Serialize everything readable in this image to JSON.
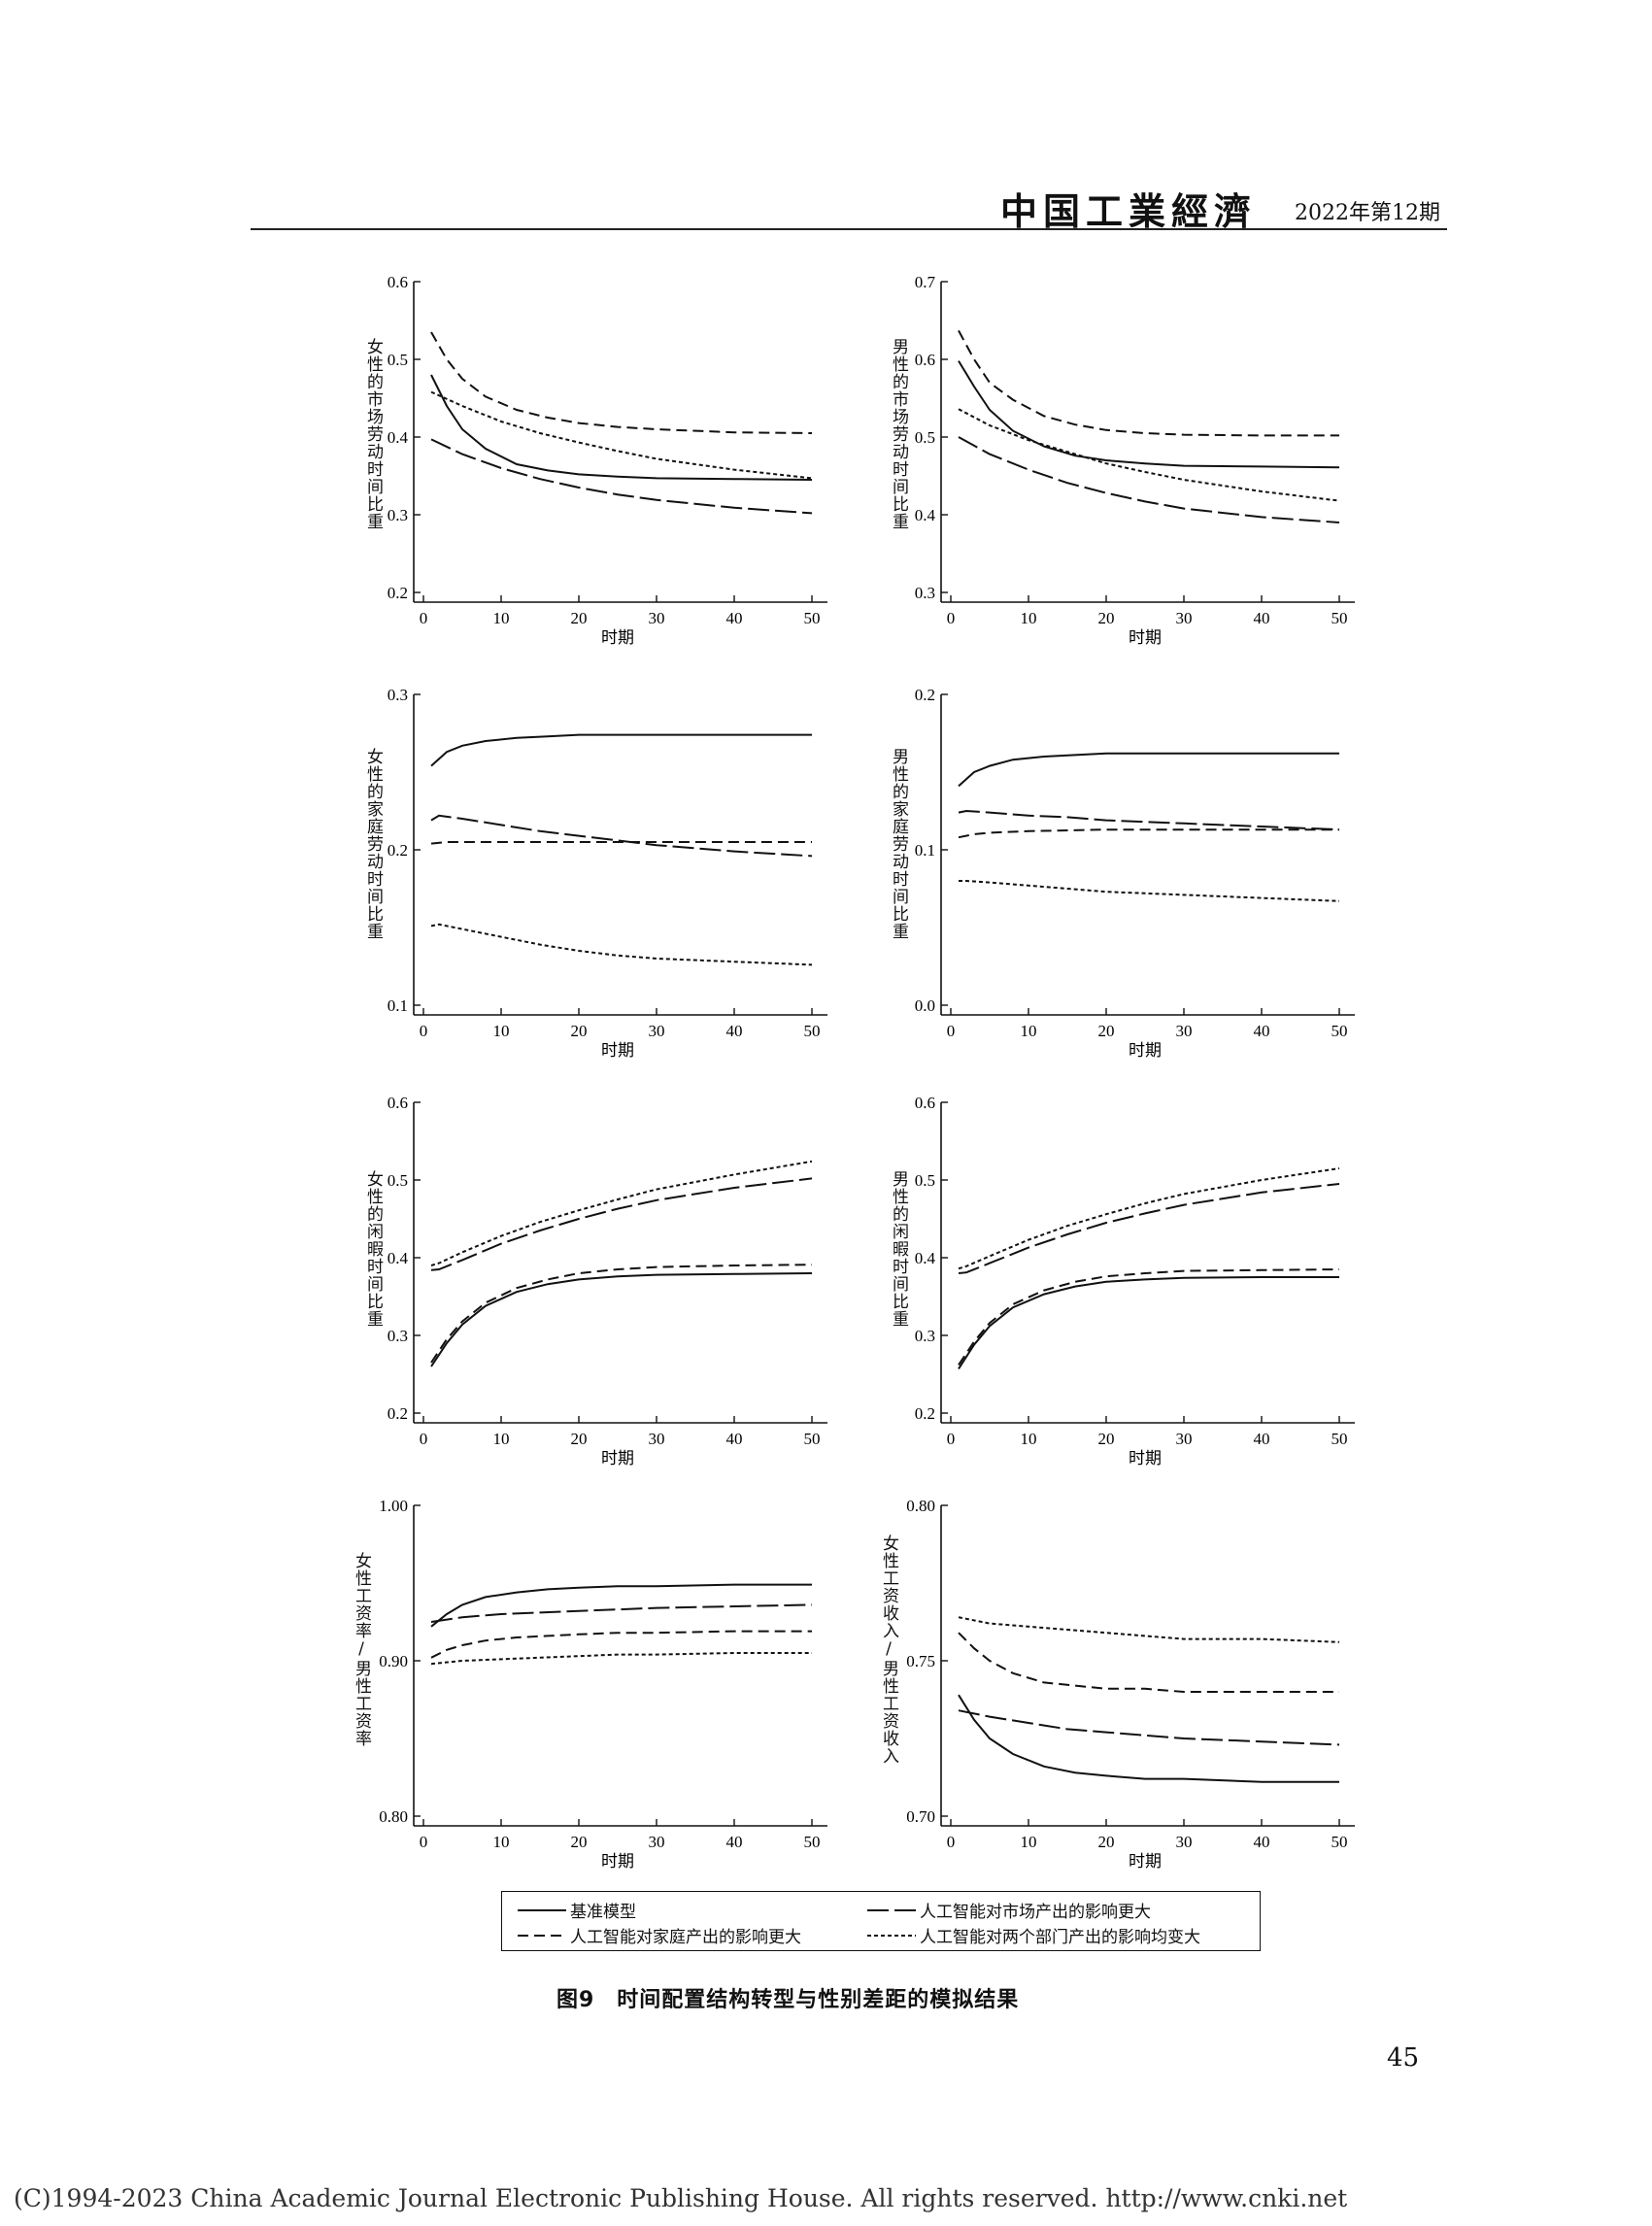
{
  "header": {
    "journal": "中国工業經濟",
    "issue": "2022年第12期"
  },
  "x_label": "时期",
  "figure": {
    "caption": "图9　时间配置结构转型与性别差距的模拟结果"
  },
  "page_number": "45",
  "copyright": "(C)1994-2023 China Academic Journal Electronic Publishing House. All rights reserved.     http://www.cnki.net",
  "legend": [
    {
      "label": "基准模型",
      "style": "solid"
    },
    {
      "label": "人工智能对市场产出的影响更大",
      "style": "longdash"
    },
    {
      "label": "人工智能对家庭产出的影响更大",
      "style": "dash"
    },
    {
      "label": "人工智能对两个部门产出的影响均变大",
      "style": "shortdash"
    }
  ],
  "chart_data": [
    {
      "type": "line",
      "ylabel": "女性的市场劳动时间比重",
      "xlim": [
        0,
        50
      ],
      "ylim": [
        0.2,
        0.6
      ],
      "yticks": [
        "0.2",
        "0.3",
        "0.4",
        "0.5",
        "0.6"
      ],
      "xticks": [
        "0",
        "10",
        "20",
        "30",
        "40",
        "50"
      ],
      "series": [
        {
          "style": "solid",
          "x": [
            1,
            3,
            5,
            8,
            12,
            16,
            20,
            25,
            30,
            40,
            50
          ],
          "y": [
            0.48,
            0.44,
            0.41,
            0.385,
            0.365,
            0.357,
            0.352,
            0.349,
            0.347,
            0.346,
            0.345
          ]
        },
        {
          "style": "longdash",
          "x": [
            1,
            5,
            10,
            15,
            20,
            25,
            30,
            40,
            50
          ],
          "y": [
            0.397,
            0.378,
            0.36,
            0.346,
            0.335,
            0.326,
            0.319,
            0.309,
            0.302
          ]
        },
        {
          "style": "dash",
          "x": [
            1,
            3,
            5,
            8,
            12,
            16,
            20,
            25,
            30,
            40,
            50
          ],
          "y": [
            0.535,
            0.5,
            0.475,
            0.452,
            0.435,
            0.425,
            0.418,
            0.413,
            0.41,
            0.406,
            0.405
          ]
        },
        {
          "style": "shortdash",
          "x": [
            1,
            5,
            10,
            15,
            20,
            25,
            30,
            40,
            50
          ],
          "y": [
            0.458,
            0.44,
            0.42,
            0.405,
            0.393,
            0.382,
            0.372,
            0.358,
            0.347
          ]
        }
      ]
    },
    {
      "type": "line",
      "ylabel": "男性的市场劳动时间比重",
      "xlim": [
        0,
        50
      ],
      "ylim": [
        0.3,
        0.7
      ],
      "yticks": [
        "0.3",
        "0.4",
        "0.5",
        "0.6",
        "0.7"
      ],
      "xticks": [
        "0",
        "10",
        "20",
        "30",
        "40",
        "50"
      ],
      "series": [
        {
          "style": "solid",
          "x": [
            1,
            3,
            5,
            8,
            12,
            16,
            20,
            25,
            30,
            40,
            50
          ],
          "y": [
            0.598,
            0.565,
            0.535,
            0.508,
            0.488,
            0.476,
            0.47,
            0.466,
            0.463,
            0.462,
            0.461
          ]
        },
        {
          "style": "longdash",
          "x": [
            1,
            5,
            10,
            15,
            20,
            25,
            30,
            40,
            50
          ],
          "y": [
            0.5,
            0.478,
            0.458,
            0.441,
            0.428,
            0.417,
            0.408,
            0.397,
            0.39
          ]
        },
        {
          "style": "dash",
          "x": [
            1,
            3,
            5,
            8,
            12,
            16,
            20,
            25,
            30,
            40,
            50
          ],
          "y": [
            0.637,
            0.6,
            0.57,
            0.548,
            0.527,
            0.516,
            0.509,
            0.505,
            0.503,
            0.502,
            0.502
          ]
        },
        {
          "style": "shortdash",
          "x": [
            1,
            5,
            10,
            15,
            20,
            25,
            30,
            40,
            50
          ],
          "y": [
            0.536,
            0.515,
            0.496,
            0.481,
            0.466,
            0.455,
            0.445,
            0.43,
            0.418
          ]
        }
      ]
    },
    {
      "type": "line",
      "ylabel": "女性的家庭劳动时间比重",
      "xlim": [
        0,
        50
      ],
      "ylim": [
        0.1,
        0.3
      ],
      "yticks": [
        "0.1",
        "0.2",
        "0.3"
      ],
      "xticks": [
        "0",
        "10",
        "20",
        "30",
        "40",
        "50"
      ],
      "series": [
        {
          "style": "solid",
          "x": [
            1,
            3,
            5,
            8,
            12,
            16,
            20,
            25,
            30,
            40,
            50
          ],
          "y": [
            0.254,
            0.263,
            0.267,
            0.27,
            0.272,
            0.273,
            0.274,
            0.274,
            0.274,
            0.274,
            0.274
          ]
        },
        {
          "style": "longdash",
          "x": [
            1,
            2,
            5,
            10,
            15,
            20,
            25,
            30,
            40,
            50
          ],
          "y": [
            0.219,
            0.222,
            0.22,
            0.216,
            0.212,
            0.209,
            0.206,
            0.203,
            0.199,
            0.196
          ]
        },
        {
          "style": "dash",
          "x": [
            1,
            3,
            5,
            10,
            20,
            30,
            40,
            50
          ],
          "y": [
            0.204,
            0.205,
            0.205,
            0.205,
            0.205,
            0.205,
            0.205,
            0.205
          ]
        },
        {
          "style": "shortdash",
          "x": [
            1,
            2,
            5,
            10,
            15,
            20,
            25,
            30,
            40,
            50
          ],
          "y": [
            0.151,
            0.152,
            0.149,
            0.144,
            0.139,
            0.135,
            0.132,
            0.13,
            0.128,
            0.126
          ]
        }
      ]
    },
    {
      "type": "line",
      "ylabel": "男性的家庭劳动时间比重",
      "xlim": [
        0,
        50
      ],
      "ylim": [
        0.0,
        0.2
      ],
      "yticks": [
        "0.0",
        "0.1",
        "0.2"
      ],
      "xticks": [
        "0",
        "10",
        "20",
        "30",
        "40",
        "50"
      ],
      "series": [
        {
          "style": "solid",
          "x": [
            1,
            3,
            5,
            8,
            12,
            16,
            20,
            25,
            30,
            40,
            50
          ],
          "y": [
            0.141,
            0.15,
            0.154,
            0.158,
            0.16,
            0.161,
            0.162,
            0.162,
            0.162,
            0.162,
            0.162
          ]
        },
        {
          "style": "longdash",
          "x": [
            1,
            2,
            5,
            10,
            15,
            20,
            25,
            30,
            40,
            50
          ],
          "y": [
            0.124,
            0.125,
            0.124,
            0.122,
            0.121,
            0.119,
            0.118,
            0.117,
            0.115,
            0.113
          ]
        },
        {
          "style": "dash",
          "x": [
            1,
            3,
            5,
            10,
            20,
            30,
            40,
            50
          ],
          "y": [
            0.108,
            0.11,
            0.111,
            0.112,
            0.113,
            0.113,
            0.113,
            0.113
          ]
        },
        {
          "style": "shortdash",
          "x": [
            1,
            2,
            5,
            10,
            15,
            20,
            25,
            30,
            40,
            50
          ],
          "y": [
            0.08,
            0.08,
            0.079,
            0.077,
            0.075,
            0.073,
            0.072,
            0.071,
            0.069,
            0.067
          ]
        }
      ]
    },
    {
      "type": "line",
      "ylabel": "女性的闲暇时间比重",
      "xlim": [
        0,
        50
      ],
      "ylim": [
        0.2,
        0.6
      ],
      "yticks": [
        "0.2",
        "0.3",
        "0.4",
        "0.5",
        "0.6"
      ],
      "xticks": [
        "0",
        "10",
        "20",
        "30",
        "40",
        "50"
      ],
      "series": [
        {
          "style": "solid",
          "x": [
            1,
            3,
            5,
            8,
            12,
            16,
            20,
            25,
            30,
            40,
            50
          ],
          "y": [
            0.26,
            0.29,
            0.314,
            0.338,
            0.356,
            0.366,
            0.372,
            0.376,
            0.378,
            0.379,
            0.38
          ]
        },
        {
          "style": "longdash",
          "x": [
            1,
            2,
            5,
            10,
            15,
            20,
            25,
            30,
            40,
            50
          ],
          "y": [
            0.384,
            0.385,
            0.397,
            0.418,
            0.435,
            0.45,
            0.463,
            0.474,
            0.49,
            0.502
          ]
        },
        {
          "style": "dash",
          "x": [
            1,
            3,
            5,
            8,
            12,
            16,
            20,
            25,
            30,
            40,
            50
          ],
          "y": [
            0.265,
            0.295,
            0.318,
            0.342,
            0.361,
            0.372,
            0.38,
            0.385,
            0.388,
            0.39,
            0.391
          ]
        },
        {
          "style": "shortdash",
          "x": [
            1,
            2,
            5,
            10,
            15,
            20,
            25,
            30,
            40,
            50
          ],
          "y": [
            0.39,
            0.393,
            0.407,
            0.428,
            0.446,
            0.461,
            0.475,
            0.488,
            0.507,
            0.524
          ]
        }
      ]
    },
    {
      "type": "line",
      "ylabel": "男性的闲暇时间比重",
      "xlim": [
        0,
        50
      ],
      "ylim": [
        0.2,
        0.6
      ],
      "yticks": [
        "0.2",
        "0.3",
        "0.4",
        "0.5",
        "0.6"
      ],
      "xticks": [
        "0",
        "10",
        "20",
        "30",
        "40",
        "50"
      ],
      "series": [
        {
          "style": "solid",
          "x": [
            1,
            3,
            5,
            8,
            12,
            16,
            20,
            25,
            30,
            40,
            50
          ],
          "y": [
            0.257,
            0.288,
            0.312,
            0.336,
            0.353,
            0.363,
            0.369,
            0.372,
            0.374,
            0.375,
            0.375
          ]
        },
        {
          "style": "longdash",
          "x": [
            1,
            2,
            5,
            10,
            15,
            20,
            25,
            30,
            40,
            50
          ],
          "y": [
            0.38,
            0.381,
            0.393,
            0.413,
            0.43,
            0.445,
            0.457,
            0.468,
            0.484,
            0.495
          ]
        },
        {
          "style": "dash",
          "x": [
            1,
            3,
            5,
            8,
            12,
            16,
            20,
            25,
            30,
            40,
            50
          ],
          "y": [
            0.262,
            0.292,
            0.316,
            0.34,
            0.358,
            0.369,
            0.376,
            0.38,
            0.383,
            0.384,
            0.385
          ]
        },
        {
          "style": "shortdash",
          "x": [
            1,
            2,
            5,
            10,
            15,
            20,
            25,
            30,
            40,
            50
          ],
          "y": [
            0.386,
            0.389,
            0.402,
            0.423,
            0.441,
            0.456,
            0.47,
            0.482,
            0.5,
            0.515
          ]
        }
      ]
    },
    {
      "type": "line",
      "ylabel": "女性工资率/男性工资率",
      "xlim": [
        0,
        50
      ],
      "ylim": [
        0.8,
        1.0
      ],
      "yticks": [
        "0.80",
        "0.90",
        "1.00"
      ],
      "xticks": [
        "0",
        "10",
        "20",
        "30",
        "40",
        "50"
      ],
      "series": [
        {
          "style": "solid",
          "x": [
            1,
            3,
            5,
            8,
            12,
            16,
            20,
            25,
            30,
            40,
            50
          ],
          "y": [
            0.922,
            0.93,
            0.936,
            0.941,
            0.944,
            0.946,
            0.947,
            0.948,
            0.948,
            0.949,
            0.949
          ]
        },
        {
          "style": "longdash",
          "x": [
            1,
            5,
            10,
            15,
            20,
            25,
            30,
            40,
            50
          ],
          "y": [
            0.925,
            0.928,
            0.93,
            0.931,
            0.932,
            0.933,
            0.934,
            0.935,
            0.936
          ]
        },
        {
          "style": "dash",
          "x": [
            1,
            3,
            5,
            8,
            12,
            16,
            20,
            25,
            30,
            40,
            50
          ],
          "y": [
            0.902,
            0.907,
            0.91,
            0.913,
            0.915,
            0.916,
            0.917,
            0.918,
            0.918,
            0.919,
            0.919
          ]
        },
        {
          "style": "shortdash",
          "x": [
            1,
            5,
            10,
            15,
            20,
            25,
            30,
            40,
            50
          ],
          "y": [
            0.898,
            0.9,
            0.901,
            0.902,
            0.903,
            0.904,
            0.904,
            0.905,
            0.905
          ]
        }
      ]
    },
    {
      "type": "line",
      "ylabel": "女性工资收入/男性工资收入",
      "xlim": [
        0,
        50
      ],
      "ylim": [
        0.7,
        0.8
      ],
      "yticks": [
        "0.70",
        "0.75",
        "0.80"
      ],
      "xticks": [
        "0",
        "10",
        "20",
        "30",
        "40",
        "50"
      ],
      "series": [
        {
          "style": "solid",
          "x": [
            1,
            3,
            5,
            8,
            12,
            16,
            20,
            25,
            30,
            40,
            50
          ],
          "y": [
            0.739,
            0.731,
            0.725,
            0.72,
            0.716,
            0.714,
            0.713,
            0.712,
            0.712,
            0.711,
            0.711
          ]
        },
        {
          "style": "longdash",
          "x": [
            1,
            5,
            10,
            15,
            20,
            25,
            30,
            40,
            50
          ],
          "y": [
            0.734,
            0.732,
            0.73,
            0.728,
            0.727,
            0.726,
            0.725,
            0.724,
            0.723
          ]
        },
        {
          "style": "dash",
          "x": [
            1,
            3,
            5,
            8,
            12,
            16,
            20,
            25,
            30,
            40,
            50
          ],
          "y": [
            0.759,
            0.754,
            0.75,
            0.746,
            0.743,
            0.742,
            0.741,
            0.741,
            0.74,
            0.74,
            0.74
          ]
        },
        {
          "style": "shortdash",
          "x": [
            1,
            5,
            10,
            15,
            20,
            25,
            30,
            40,
            50
          ],
          "y": [
            0.764,
            0.762,
            0.761,
            0.76,
            0.759,
            0.758,
            0.757,
            0.757,
            0.756
          ]
        }
      ]
    }
  ]
}
